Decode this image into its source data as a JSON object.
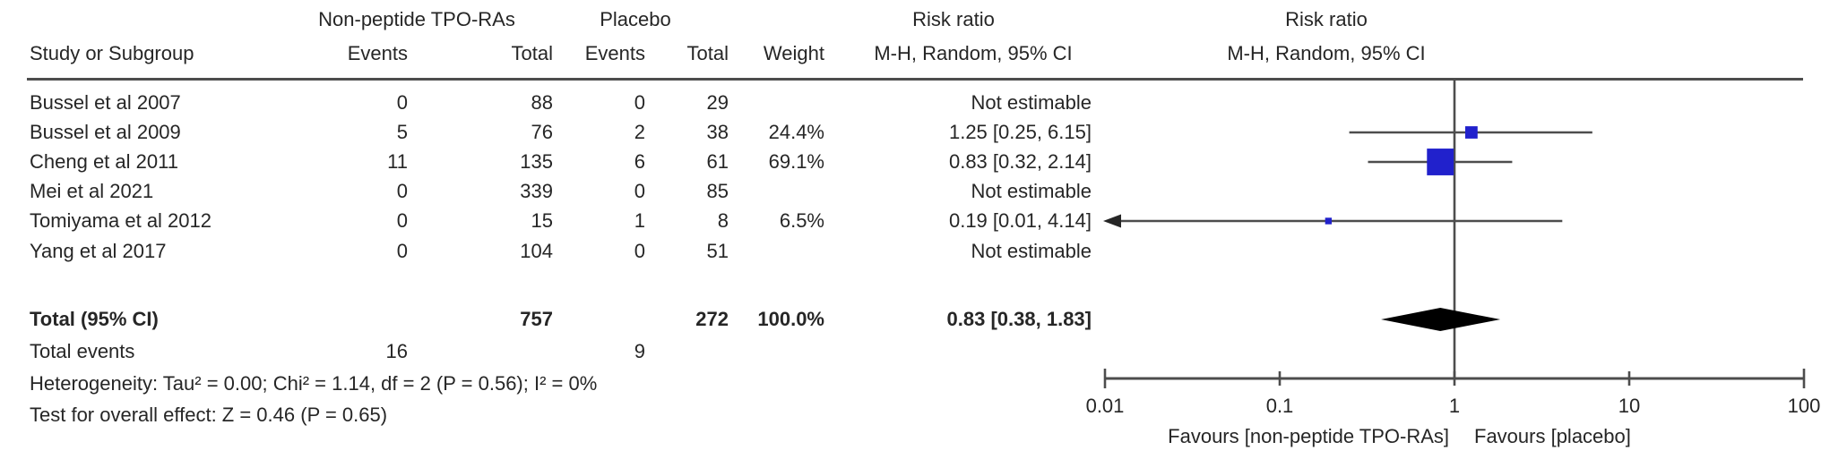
{
  "table_header": {
    "group1": "Non-peptide TPO-RAs",
    "group2": "Placebo",
    "col_study": "Study or Subgroup",
    "col_events1": "Events",
    "col_total1": "Total",
    "col_events2": "Events",
    "col_total2": "Total",
    "col_weight": "Weight",
    "risk_ratio": "Risk ratio",
    "mh_ci": "M-H, Random, 95% CI"
  },
  "plot_header": {
    "risk_ratio": "Risk ratio",
    "mh_ci": "M-H, Random, 95% CI"
  },
  "chart_data": {
    "type": "forest_plot",
    "effect_measure": "Risk ratio",
    "method": "M-H, Random, 95% CI",
    "x_scale": "log10",
    "axis_min": 0.01,
    "axis_max": 100,
    "axis_ticks": [
      0.01,
      0.1,
      1,
      10,
      100
    ],
    "axis_tick_labels": [
      "0.01",
      "0.1",
      "1",
      "10",
      "100"
    ],
    "no_effect_value": 1,
    "marker_color": "#2121cc",
    "line_color": "#4d4d4d",
    "diamond_color": "#000000",
    "studies": [
      {
        "name": "Bussel et al 2007",
        "events_tpo": 0,
        "total_tpo": 88,
        "events_placebo": 0,
        "total_placebo": 29,
        "weight": "",
        "weight_pct": null,
        "rr_text": "Not estimable",
        "rr": null,
        "ci_low": null,
        "ci_high": null
      },
      {
        "name": "Bussel et al 2009",
        "events_tpo": 5,
        "total_tpo": 76,
        "events_placebo": 2,
        "total_placebo": 38,
        "weight": "24.4%",
        "weight_pct": 24.4,
        "rr_text": "1.25 [0.25, 6.15]",
        "rr": 1.25,
        "ci_low": 0.25,
        "ci_high": 6.15
      },
      {
        "name": "Cheng et al 2011",
        "events_tpo": 11,
        "total_tpo": 135,
        "events_placebo": 6,
        "total_placebo": 61,
        "weight": "69.1%",
        "weight_pct": 69.1,
        "rr_text": "0.83 [0.32, 2.14]",
        "rr": 0.83,
        "ci_low": 0.32,
        "ci_high": 2.14
      },
      {
        "name": "Mei et al 2021",
        "events_tpo": 0,
        "total_tpo": 339,
        "events_placebo": 0,
        "total_placebo": 85,
        "weight": "",
        "weight_pct": null,
        "rr_text": "Not estimable",
        "rr": null,
        "ci_low": null,
        "ci_high": null
      },
      {
        "name": "Tomiyama et al 2012",
        "events_tpo": 0,
        "total_tpo": 15,
        "events_placebo": 1,
        "total_placebo": 8,
        "weight": "6.5%",
        "weight_pct": 6.5,
        "rr_text": "0.19 [0.01, 4.14]",
        "rr": 0.19,
        "ci_low": 0.01,
        "ci_high": 4.14
      },
      {
        "name": "Yang et al 2017",
        "events_tpo": 0,
        "total_tpo": 104,
        "events_placebo": 0,
        "total_placebo": 51,
        "weight": "",
        "weight_pct": null,
        "rr_text": "Not estimable",
        "rr": null,
        "ci_low": null,
        "ci_high": null
      }
    ],
    "total": {
      "label": "Total (95% CI)",
      "total_tpo": 757,
      "total_placebo": 272,
      "weight": "100.0%",
      "rr_text": "0.83 [0.38, 1.83]",
      "rr": 0.83,
      "ci_low": 0.38,
      "ci_high": 1.83
    },
    "total_events": {
      "label": "Total events",
      "tpo": 16,
      "placebo": 9
    },
    "heterogeneity": "Heterogeneity: Tau² = 0.00; Chi² = 1.14, df = 2 (P = 0.56); I² = 0%",
    "overall_effect": "Test for overall effect: Z = 0.46 (P = 0.65)",
    "favours_left": "Favours [non-peptide TPO-RAs]",
    "favours_right": "Favours [placebo]"
  }
}
